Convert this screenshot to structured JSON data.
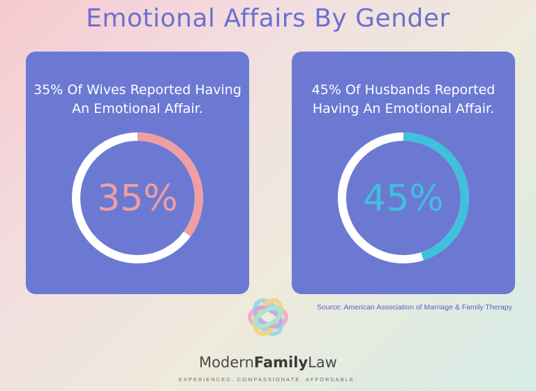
{
  "title": "Emotional Affairs By Gender",
  "chart_data": [
    {
      "type": "pie",
      "caption_line1": "35% Of Wives Reported Having",
      "caption_line2": "An Emotional Affair.",
      "value": 35,
      "value_label": "35%",
      "color": "#ef9ea2"
    },
    {
      "type": "pie",
      "caption_line1": "45% Of Husbands Reported",
      "caption_line2": "Having An Emotional Affair.",
      "value": 45,
      "value_label": "45%",
      "color": "#3fc0dc"
    }
  ],
  "colors": {
    "card": "#6b79d3",
    "track": "#ffffff",
    "title": "#6a70cf"
  },
  "source": "Source: American Association of Marriage & Family Therapy",
  "brand": {
    "part1": "Modern",
    "part2": "Family",
    "part3": "Law"
  },
  "tagline": "EXPERIENCED. COMPASSIONATE. AFFORDABLE.",
  "logo_icon": "circular-knot-logo-icon"
}
